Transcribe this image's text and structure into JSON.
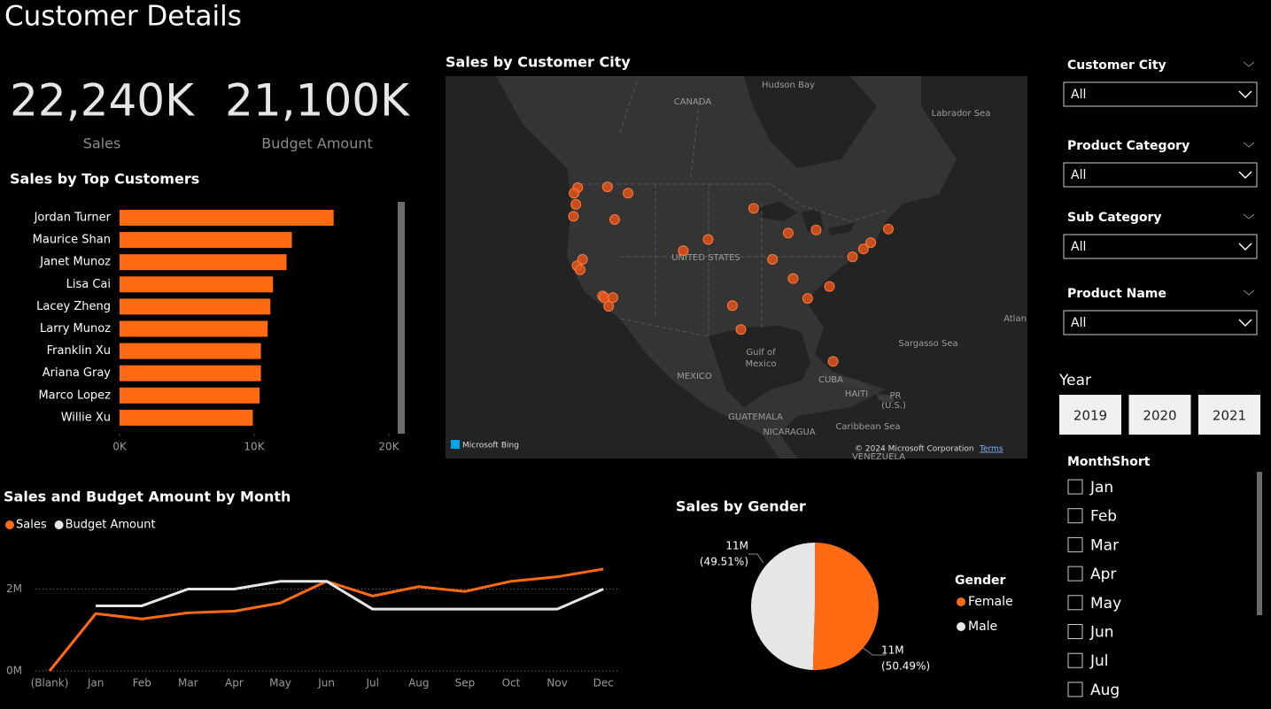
{
  "title": "Customer Details",
  "kpis": [
    {
      "value": "22,240K",
      "label": "Sales"
    },
    {
      "value": "21,100K",
      "label": "Budget Amount"
    }
  ],
  "slicers": [
    {
      "label": "Customer City",
      "selected": "All"
    },
    {
      "label": "Product Category",
      "selected": "All"
    },
    {
      "label": "Sub Category",
      "selected": "All"
    },
    {
      "label": "Product Name",
      "selected": "All"
    }
  ],
  "year_slicer": {
    "label": "Year",
    "options": [
      "2019",
      "2020",
      "2021"
    ]
  },
  "month_slicer": {
    "label": "MonthShort",
    "options": [
      "Jan",
      "Feb",
      "Mar",
      "Apr",
      "May",
      "Jun",
      "Jul",
      "Aug"
    ]
  },
  "chart_data": [
    {
      "type": "bar",
      "title": "Sales by Top Customers",
      "orientation": "horizontal",
      "color": "#ff6a13",
      "categories": [
        "Jordan Turner",
        "Maurice Shan",
        "Janet Munoz",
        "Lisa Cai",
        "Lacey Zheng",
        "Larry Munoz",
        "Franklin Xu",
        "Ariana Gray",
        "Marco Lopez",
        "Willie Xu"
      ],
      "values": [
        15.9,
        12.8,
        12.4,
        11.4,
        11.2,
        11.0,
        10.5,
        10.5,
        10.4,
        9.9
      ],
      "xlim": [
        0,
        20
      ],
      "xticks": [
        {
          "value": 0,
          "label": "0K"
        },
        {
          "value": 10,
          "label": "10K"
        },
        {
          "value": 20,
          "label": "20K"
        }
      ]
    },
    {
      "type": "map",
      "title": "Sales by Customer City",
      "color": "#e0521a",
      "labels": [
        "Hudson Bay",
        "CANADA",
        "Labrador Sea",
        "UNITED STATES",
        "Gulf of",
        "Mexico",
        "MEXICO",
        "CUBA",
        "HAITI",
        "PR",
        "(U.S.)",
        "Sargasso Sea",
        "Caribbean Sea",
        "GUATEMALA",
        "NICARAGUA",
        "VENEZUELA",
        "Atlan"
      ],
      "attribution": "Microsoft Bing",
      "copyright": "© 2024 Microsoft Corporation",
      "terms": "Terms",
      "points": {
        "lon": [
          -122.3,
          -122.6,
          -123.0,
          -122.9,
          -122.4,
          -121.9,
          -121.5,
          -118.2,
          -117.9,
          -117.2,
          -116.5,
          -114.0,
          -117.4,
          -116.2,
          -104.9,
          -100.8,
          -87.6,
          -84.4,
          -90.2,
          -80.8,
          -74.0,
          -75.2,
          -77.0,
          -71.1,
          -83.0,
          -80.2,
          -96.8,
          -95.4,
          -86.8,
          -93.3
        ],
        "lat": [
          47.6,
          45.5,
          44.0,
          46.9,
          37.8,
          37.3,
          38.6,
          34.0,
          33.8,
          32.7,
          33.8,
          46.9,
          47.7,
          43.6,
          39.7,
          41.1,
          41.9,
          33.7,
          38.6,
          35.2,
          40.7,
          39.9,
          38.9,
          42.4,
          42.3,
          25.8,
          32.8,
          29.8,
          36.2,
          45.0
        ]
      }
    },
    {
      "type": "line",
      "title": "Sales and Budget Amount by Month",
      "categories": [
        "(Blank)",
        "Jan",
        "Feb",
        "Mar",
        "Apr",
        "May",
        "Jun",
        "Jul",
        "Aug",
        "Sep",
        "Oct",
        "Nov",
        "Dec"
      ],
      "series": [
        {
          "name": "Sales",
          "color": "#ff6a13",
          "values": [
            0,
            1.4,
            1.27,
            1.42,
            1.46,
            1.66,
            2.19,
            1.83,
            2.06,
            1.94,
            2.19,
            2.3,
            2.49
          ]
        },
        {
          "name": "Budget Amount",
          "color": "#e6e6e6",
          "values": [
            null,
            1.59,
            1.59,
            2.0,
            2.0,
            2.19,
            2.19,
            1.51,
            1.51,
            1.51,
            1.51,
            1.51,
            2.0
          ]
        }
      ],
      "ylim": [
        0,
        3.2
      ],
      "yticks": [
        {
          "value": 0,
          "label": "0M"
        },
        {
          "value": 2,
          "label": "2M"
        }
      ],
      "grid": true
    },
    {
      "type": "pie",
      "title": "Sales by Gender",
      "legend_title": "Gender",
      "categories": [
        "Female",
        "Male"
      ],
      "colors": [
        "#ff6a13",
        "#e6e6e6"
      ],
      "values": [
        50.49,
        49.51
      ],
      "value_labels": [
        "(50.49%)",
        "(49.51%)"
      ],
      "amount_labels": [
        "11M",
        "11M"
      ]
    }
  ]
}
